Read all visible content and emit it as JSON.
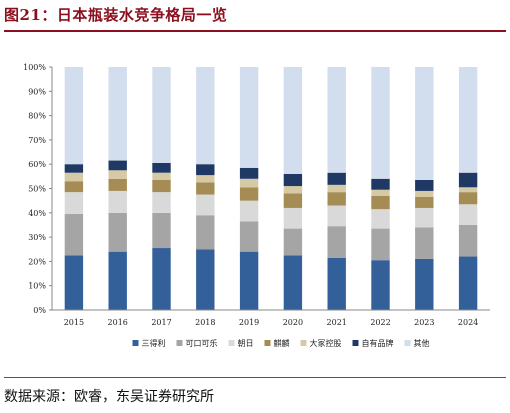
{
  "figure": {
    "title": "图21：日本瓶装水竞争格局一览",
    "source": "数据来源：欧睿，东吴证券研究所"
  },
  "chart_data": {
    "type": "bar",
    "stacked": true,
    "title": "",
    "xlabel": "",
    "ylabel": "",
    "ylim": [
      0,
      100
    ],
    "ytick_format": "percent",
    "yticks": [
      "0%",
      "10%",
      "20%",
      "30%",
      "40%",
      "50%",
      "60%",
      "70%",
      "80%",
      "90%",
      "100%"
    ],
    "grid": false,
    "legend_position": "bottom",
    "categories": [
      "2015",
      "2016",
      "2017",
      "2018",
      "2019",
      "2020",
      "2021",
      "2022",
      "2023",
      "2024"
    ],
    "series": [
      {
        "name": "三得利",
        "color": "#34609a",
        "values": [
          22.5,
          24.0,
          25.5,
          25.0,
          24.0,
          22.5,
          21.5,
          20.5,
          21.0,
          22.0
        ]
      },
      {
        "name": "可口可乐",
        "color": "#a5a5a5",
        "values": [
          17.0,
          16.0,
          14.5,
          14.0,
          12.5,
          11.0,
          13.0,
          13.0,
          13.0,
          13.0
        ]
      },
      {
        "name": "朝日",
        "color": "#d9d9d9",
        "values": [
          9.0,
          9.0,
          8.5,
          8.5,
          8.5,
          8.5,
          8.5,
          8.0,
          8.0,
          8.5
        ]
      },
      {
        "name": "麒麟",
        "color": "#a58c54",
        "values": [
          4.5,
          5.0,
          5.0,
          5.0,
          5.5,
          6.0,
          5.5,
          5.5,
          4.5,
          5.0
        ]
      },
      {
        "name": "大冢控股",
        "color": "#d6c9a6",
        "values": [
          3.5,
          3.5,
          3.0,
          3.0,
          3.5,
          3.0,
          3.0,
          2.5,
          2.5,
          2.0
        ]
      },
      {
        "name": "自有品牌",
        "color": "#1f3864",
        "values": [
          3.5,
          4.0,
          4.0,
          4.5,
          4.5,
          5.0,
          5.0,
          4.5,
          4.5,
          6.0
        ]
      },
      {
        "name": "其他",
        "color": "#d2ddee",
        "values": [
          40.0,
          38.5,
          39.5,
          40.0,
          41.5,
          44.0,
          43.5,
          46.0,
          46.5,
          43.5
        ]
      }
    ]
  }
}
